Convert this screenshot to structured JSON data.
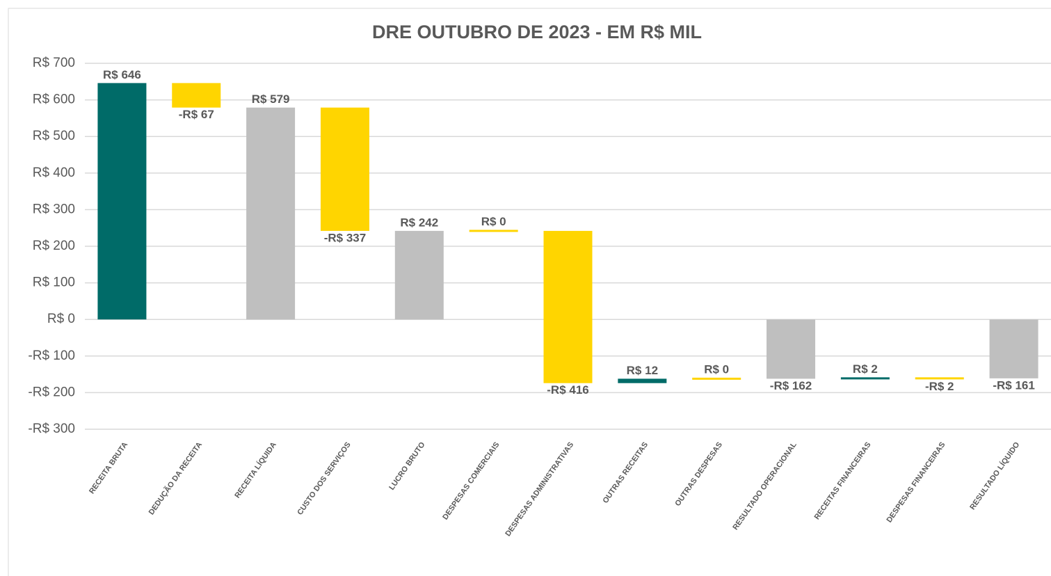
{
  "chart_data": {
    "type": "waterfall",
    "title": "DRE OUTUBRO DE 2023 - EM R$ MIL",
    "categories": [
      "RECEITA BRUTA",
      "DEDUÇÃO DA RECEITA",
      "RECEITA LÍQUIDA",
      "CUSTO DOS SERVIÇOS",
      "LUCRO BRUTO",
      "DESPESAS COMERCIAIS",
      "DESPESAS ADMINISTRATIVAS",
      "OUTRAS RECEITAS",
      "OUTRAS DESPESAS",
      "RESULTADO OPERACIONAL",
      "RECEITAS FINANCEIRAS",
      "DESPESAS FINANCEIRAS",
      "RESULTADO LÍQUIDO"
    ],
    "values": [
      646,
      -67,
      579,
      -337,
      242,
      0,
      -416,
      12,
      0,
      -162,
      2,
      -2,
      -161
    ],
    "value_labels": [
      "R$ 646",
      "-R$ 67",
      "R$ 579",
      "-R$ 337",
      "R$ 242",
      "R$ 0",
      "-R$ 416",
      "R$ 12",
      "R$ 0",
      "-R$ 162",
      "R$ 2",
      "-R$ 2",
      "-R$ 161"
    ],
    "measure": [
      "relative",
      "relative",
      "total",
      "relative",
      "total",
      "relative",
      "relative",
      "relative",
      "relative",
      "total",
      "relative",
      "relative",
      "total"
    ],
    "colors": [
      "#006b68",
      "#ffd500",
      "#bfbfbf",
      "#ffd500",
      "#bfbfbf",
      "#ffd500",
      "#ffd500",
      "#006b68",
      "#ffd500",
      "#bfbfbf",
      "#006b68",
      "#ffd500",
      "#bfbfbf"
    ],
    "ylim": [
      -300,
      700
    ],
    "yticks": [
      {
        "value": -300,
        "label": "-R$ 300"
      },
      {
        "value": -200,
        "label": "-R$ 200"
      },
      {
        "value": -100,
        "label": "-R$ 100"
      },
      {
        "value": 0,
        "label": "R$ 0"
      },
      {
        "value": 100,
        "label": "R$ 100"
      },
      {
        "value": 200,
        "label": "R$ 200"
      },
      {
        "value": 300,
        "label": "R$ 300"
      },
      {
        "value": 400,
        "label": "R$ 400"
      },
      {
        "value": 500,
        "label": "R$ 500"
      },
      {
        "value": 600,
        "label": "R$ 600"
      },
      {
        "value": 700,
        "label": "R$ 700"
      }
    ],
    "grid": true
  }
}
